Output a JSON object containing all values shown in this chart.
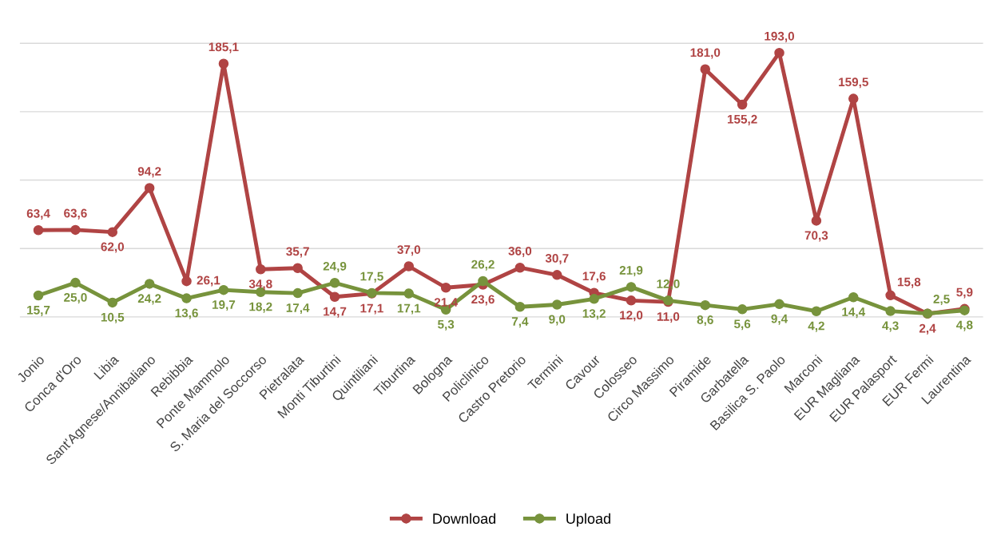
{
  "chart_data": {
    "type": "line",
    "categories": [
      "Jonio",
      "Conca d'Oro",
      "Libia",
      "Sant'Agnese/Annibaliano",
      "Rebibbia",
      "Ponte Mammolo",
      "S. Maria del Soccorso",
      "Pietralata",
      "Monti Tiburtini",
      "Quintiliani",
      "Tiburtina",
      "Bologna",
      "Policlinico",
      "Castro Pretorio",
      "Termini",
      "Cavour",
      "Colosseo",
      "Circo Massimo",
      "Piramide",
      "Garbatella",
      "Basilica S. Paolo",
      "Marconi",
      "EUR Magliana",
      "EUR Palasport",
      "EUR Fermi",
      "Laurentina"
    ],
    "series": [
      {
        "name": "Download",
        "color": "#b04444",
        "values": [
          63.4,
          63.6,
          62.0,
          94.2,
          26.1,
          185.1,
          34.8,
          35.7,
          14.7,
          17.1,
          37.0,
          21.4,
          23.6,
          36.0,
          30.7,
          17.6,
          12.0,
          11.0,
          181.0,
          155.2,
          193.0,
          70.3,
          159.5,
          15.8,
          2.4,
          5.9
        ],
        "value_labels": [
          "63,4",
          "63,6",
          "62,0",
          "94,2",
          "26,1",
          "185,1",
          "34,8",
          "35,7",
          "14,7",
          "17,1",
          "37,0",
          "21,4",
          "23,6",
          "36,0",
          "30,7",
          "17,6",
          "12,0",
          "11,0",
          "181,0",
          "155,2",
          "193,0",
          "70,3",
          "159,5",
          "15,8",
          "2,4",
          "5,9"
        ]
      },
      {
        "name": "Upload",
        "color": "#77933c",
        "values": [
          15.7,
          25.0,
          10.5,
          24.2,
          13.6,
          19.7,
          18.2,
          17.4,
          24.9,
          17.5,
          17.1,
          5.3,
          26.2,
          7.4,
          9.0,
          13.2,
          21.9,
          12.0,
          8.6,
          5.6,
          9.4,
          4.2,
          14.4,
          4.3,
          2.5,
          4.8
        ],
        "value_labels": [
          "15,7",
          "25,0",
          "10,5",
          "24,2",
          "13,6",
          "19,7",
          "18,2",
          "17,4",
          "24,9",
          "17,5",
          "17,1",
          "5,3",
          "26,2",
          "7,4",
          "9,0",
          "13,2",
          "21,9",
          "12,0",
          "8,6",
          "5,6",
          "9,4",
          "4,2",
          "14,4",
          "4,3",
          "2,5",
          "4,8"
        ]
      }
    ],
    "tick_labels": "x",
    "grid": "y",
    "legend": "bottom",
    "marker": "circle",
    "line_style": "solid"
  }
}
